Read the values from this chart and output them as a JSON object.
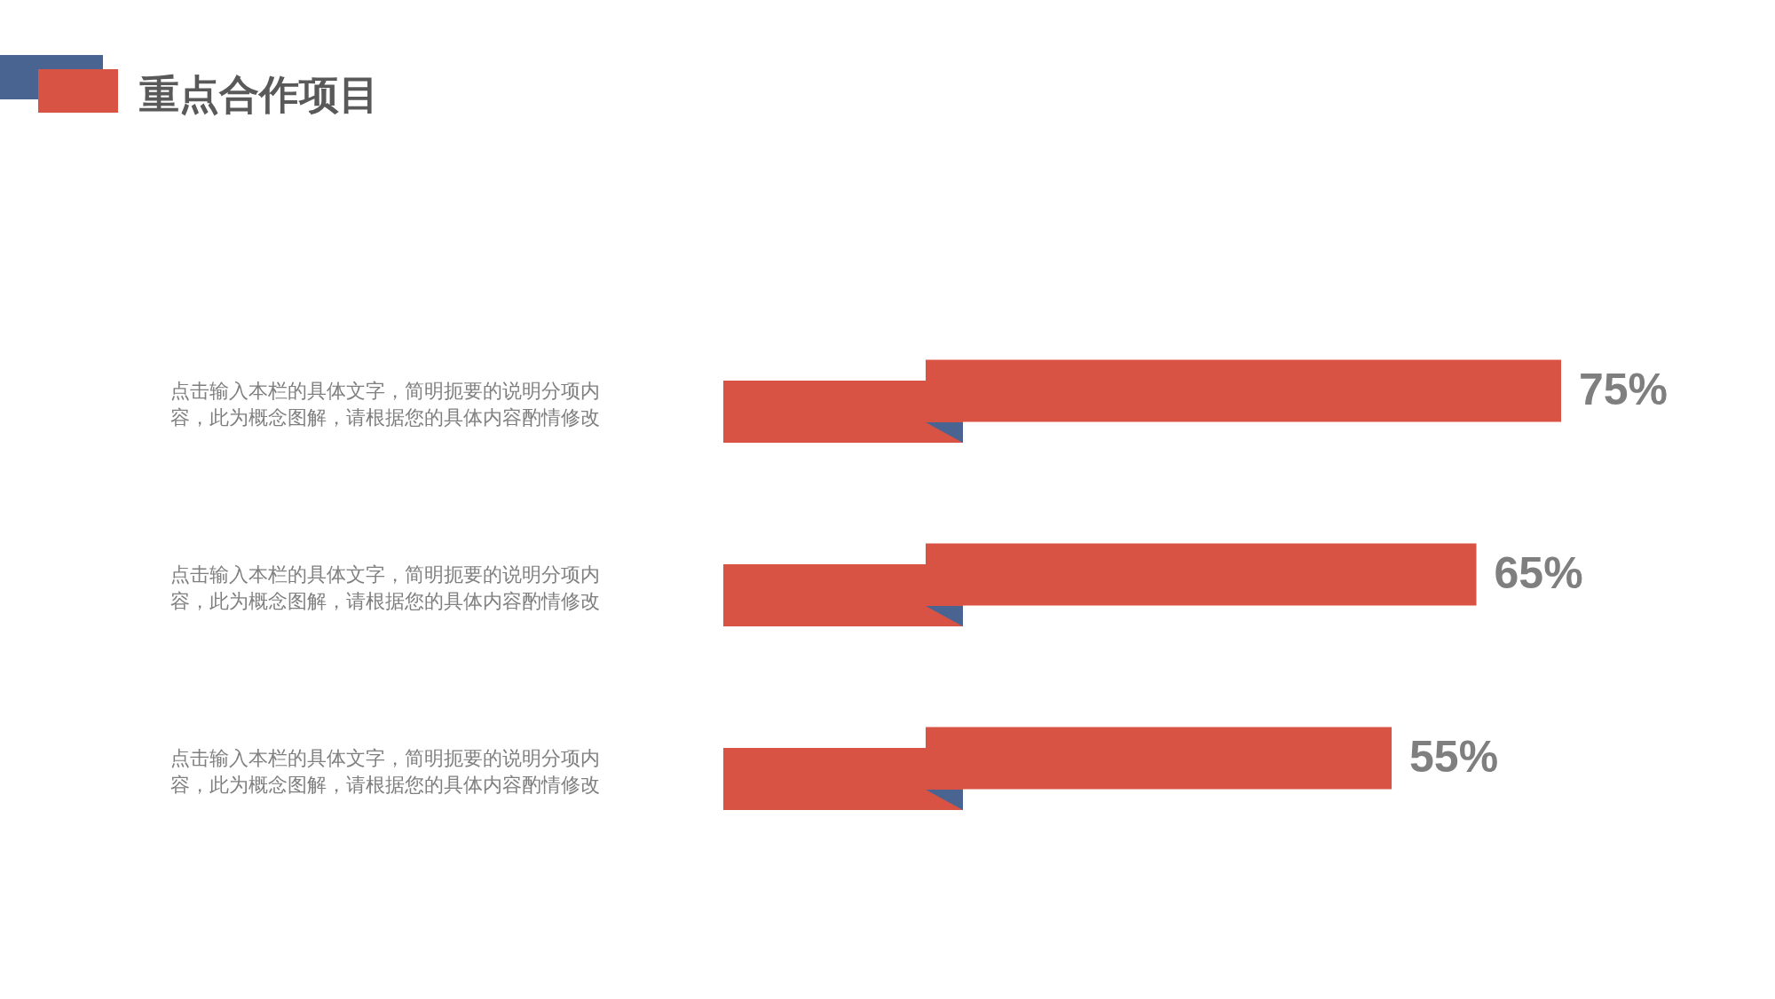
{
  "chart_data": {
    "type": "bar",
    "orientation": "horizontal",
    "title": "重点合作项目",
    "categories": [
      "点击输入本栏的具体文字，简明扼要的说明分项内容，此为概念图解，请根据您的具体内容酌情修改",
      "点击输入本栏的具体文字，简明扼要的说明分项内容，此为概念图解，请根据您的具体内容酌情修改",
      "点击输入本栏的具体文字，简明扼要的说明分项内容，此为概念图解，请根据您的具体内容酌情修改"
    ],
    "values": [
      75,
      65,
      55
    ],
    "value_labels": [
      "75%",
      "65%",
      "55%"
    ],
    "color": "#d95345"
  }
}
